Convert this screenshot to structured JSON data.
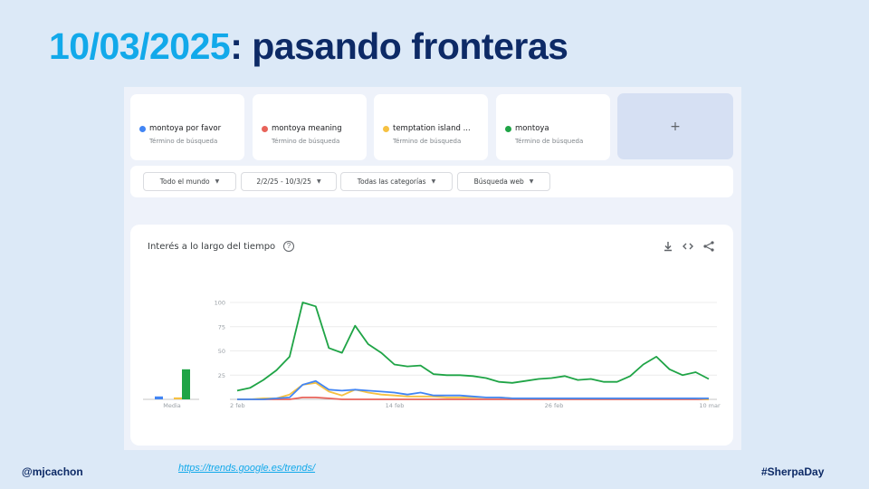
{
  "slide": {
    "title_date": "10/03/2025",
    "title_rest": ": pasando fronteras",
    "footer_handle": "@mjcachon",
    "footer_link": "https://trends.google.es/trends/",
    "footer_tag": "#SherpaDay"
  },
  "terms": [
    {
      "name": "montoya por favor",
      "sub": "Término de búsqueda",
      "color": "#4285f4"
    },
    {
      "name": "montoya meaning",
      "sub": "Término de búsqueda",
      "color": "#e8635a"
    },
    {
      "name": "temptation island ...",
      "sub": "Término de búsqueda",
      "color": "#f6c142"
    },
    {
      "name": "montoya",
      "sub": "Término de búsqueda",
      "color": "#1fa446"
    }
  ],
  "add_term": {
    "label": "+"
  },
  "filters": [
    {
      "label": "Todo el mundo"
    },
    {
      "label": "2/2/25 - 10/3/25"
    },
    {
      "label": "Todas las categorías"
    },
    {
      "label": "Búsqueda web"
    }
  ],
  "chart_card": {
    "title": "Interés a lo largo del tiempo",
    "help_icon": "?",
    "actions": [
      "download-icon",
      "embed-code-icon",
      "share-icon"
    ]
  },
  "chart_data": {
    "type": "line",
    "title": "Interés a lo largo del tiempo",
    "xlabel": "",
    "ylabel": "",
    "ylim": [
      0,
      100
    ],
    "yticks": [
      25,
      50,
      75,
      100
    ],
    "xticks": [
      "2 feb",
      "14 feb",
      "26 feb",
      "10 mar"
    ],
    "grid": true,
    "x_start": "2 feb",
    "x_end": "10 mar",
    "average_label": "Media",
    "averages": [
      {
        "name": "montoya por favor",
        "value": 3
      },
      {
        "name": "montoya meaning",
        "value": 0
      },
      {
        "name": "temptation island ...",
        "value": 2
      },
      {
        "name": "montoya",
        "value": 31
      }
    ],
    "series": [
      {
        "name": "montoya por favor",
        "color": "#4285f4",
        "values": [
          0,
          0,
          0,
          1,
          2,
          15,
          19,
          10,
          9,
          10,
          9,
          8,
          7,
          5,
          7,
          4,
          4,
          4,
          3,
          2,
          2,
          1,
          1,
          1,
          1,
          1,
          1,
          1,
          1,
          1,
          1,
          1,
          1,
          1,
          1,
          1,
          1
        ]
      },
      {
        "name": "montoya meaning",
        "color": "#e8635a",
        "values": [
          0,
          0,
          0,
          0,
          0,
          2,
          2,
          1,
          0,
          0,
          0,
          0,
          0,
          0,
          0,
          0,
          0,
          0,
          0,
          0,
          0,
          0,
          0,
          0,
          0,
          0,
          0,
          0,
          0,
          0,
          0,
          0,
          0,
          0,
          0,
          0,
          0
        ]
      },
      {
        "name": "temptation island ...",
        "color": "#f6c142",
        "values": [
          0,
          0,
          1,
          1,
          5,
          15,
          17,
          8,
          4,
          10,
          7,
          5,
          4,
          3,
          3,
          3,
          2,
          2,
          2,
          2,
          2,
          1,
          1,
          1,
          1,
          1,
          1,
          1,
          1,
          1,
          1,
          1,
          1,
          1,
          1,
          1,
          0
        ]
      },
      {
        "name": "montoya",
        "color": "#1fa446",
        "values": [
          9,
          12,
          20,
          30,
          44,
          100,
          96,
          53,
          48,
          76,
          57,
          48,
          36,
          34,
          35,
          26,
          25,
          25,
          24,
          22,
          18,
          17,
          19,
          21,
          22,
          24,
          20,
          21,
          18,
          18,
          24,
          36,
          44,
          31,
          25,
          28,
          21
        ]
      }
    ]
  }
}
